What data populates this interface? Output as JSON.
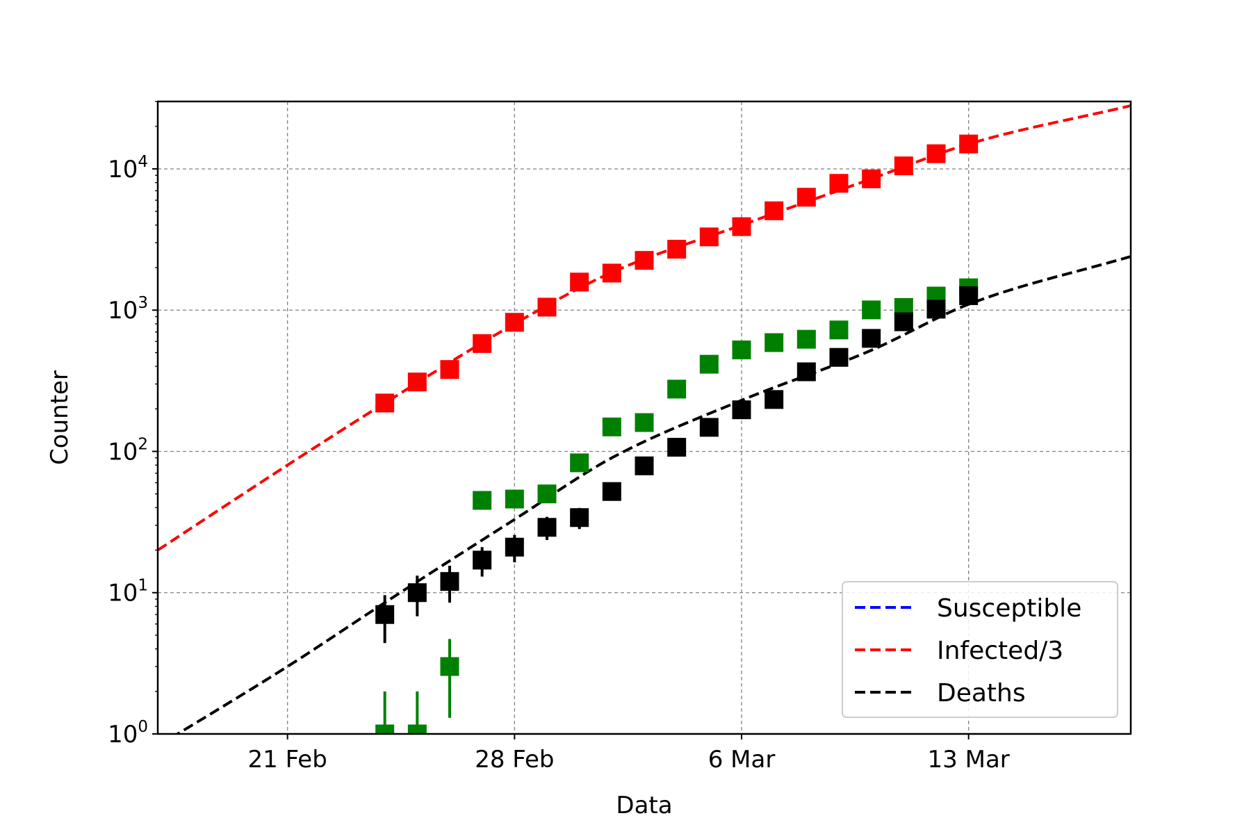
{
  "chart_data": {
    "type": "scatter",
    "xlabel": "Data",
    "ylabel": "Counter",
    "yscale": "log",
    "ylim": [
      1,
      30000
    ],
    "xlim": [
      "2020-02-17",
      "2020-03-18"
    ],
    "grid": true,
    "x_ticks": [
      {
        "date": "2020-02-21",
        "label": "21 Feb"
      },
      {
        "date": "2020-02-28",
        "label": "28 Feb"
      },
      {
        "date": "2020-03-06",
        "label": "6 Mar"
      },
      {
        "date": "2020-03-13",
        "label": "13 Mar"
      }
    ],
    "y_ticks": [
      {
        "value": 1,
        "base": "10",
        "exp": "0"
      },
      {
        "value": 10,
        "base": "10",
        "exp": "1"
      },
      {
        "value": 100,
        "base": "10",
        "exp": "2"
      },
      {
        "value": 1000,
        "base": "10",
        "exp": "3"
      },
      {
        "value": 10000,
        "base": "10",
        "exp": "4"
      }
    ],
    "legend": {
      "position": "lower-right",
      "entries": [
        {
          "label": "Susceptible",
          "color": "#0000ff"
        },
        {
          "label": "Infected/3",
          "color": "#ff0000"
        },
        {
          "label": "Deaths",
          "color": "#000000"
        }
      ]
    },
    "fit_curves": [
      {
        "color": "#ff0000",
        "points": [
          {
            "date": "2020-02-17",
            "y": 20
          },
          {
            "date": "2020-02-21",
            "y": 80
          },
          {
            "date": "2020-02-24",
            "y": 220
          },
          {
            "date": "2020-02-28",
            "y": 800
          },
          {
            "date": "2020-03-02",
            "y": 1850
          },
          {
            "date": "2020-03-06",
            "y": 4000
          },
          {
            "date": "2020-03-10",
            "y": 8500
          },
          {
            "date": "2020-03-13",
            "y": 15000
          },
          {
            "date": "2020-03-18",
            "y": 28000
          }
        ]
      },
      {
        "color": "#000000",
        "points": [
          {
            "date": "2020-02-17",
            "y": 0.82
          },
          {
            "date": "2020-02-21",
            "y": 3
          },
          {
            "date": "2020-02-24",
            "y": 8.5
          },
          {
            "date": "2020-02-28",
            "y": 33
          },
          {
            "date": "2020-03-02",
            "y": 90
          },
          {
            "date": "2020-03-06",
            "y": 230
          },
          {
            "date": "2020-03-10",
            "y": 520
          },
          {
            "date": "2020-03-13",
            "y": 1100
          },
          {
            "date": "2020-03-18",
            "y": 2400
          }
        ]
      }
    ],
    "series": [
      {
        "color": "#ff0000",
        "points": [
          {
            "date": "2020-02-24",
            "y": 220
          },
          {
            "date": "2020-02-25",
            "y": 310
          },
          {
            "date": "2020-02-26",
            "y": 380
          },
          {
            "date": "2020-02-27",
            "y": 580
          },
          {
            "date": "2020-02-28",
            "y": 820
          },
          {
            "date": "2020-02-29",
            "y": 1050
          },
          {
            "date": "2020-03-01",
            "y": 1580
          },
          {
            "date": "2020-03-02",
            "y": 1830
          },
          {
            "date": "2020-03-03",
            "y": 2250
          },
          {
            "date": "2020-03-04",
            "y": 2700
          },
          {
            "date": "2020-03-05",
            "y": 3300
          },
          {
            "date": "2020-03-06",
            "y": 3900
          },
          {
            "date": "2020-03-07",
            "y": 5050
          },
          {
            "date": "2020-03-08",
            "y": 6300
          },
          {
            "date": "2020-03-09",
            "y": 7900
          },
          {
            "date": "2020-03-10",
            "y": 8500
          },
          {
            "date": "2020-03-11",
            "y": 10500
          },
          {
            "date": "2020-03-12",
            "y": 12800
          },
          {
            "date": "2020-03-13",
            "y": 15000
          }
        ]
      },
      {
        "color": "#008000",
        "points": [
          {
            "date": "2020-02-24",
            "y": 1,
            "err": [
              1,
              2
            ]
          },
          {
            "date": "2020-02-25",
            "y": 1,
            "err": [
              1,
              2
            ]
          },
          {
            "date": "2020-02-26",
            "y": 3,
            "err": [
              1.3,
              4.7
            ]
          },
          {
            "date": "2020-02-27",
            "y": 45
          },
          {
            "date": "2020-02-28",
            "y": 46
          },
          {
            "date": "2020-02-29",
            "y": 50
          },
          {
            "date": "2020-03-01",
            "y": 83
          },
          {
            "date": "2020-03-02",
            "y": 149
          },
          {
            "date": "2020-03-03",
            "y": 160
          },
          {
            "date": "2020-03-04",
            "y": 276
          },
          {
            "date": "2020-03-05",
            "y": 414
          },
          {
            "date": "2020-03-06",
            "y": 523
          },
          {
            "date": "2020-03-07",
            "y": 589
          },
          {
            "date": "2020-03-08",
            "y": 622
          },
          {
            "date": "2020-03-09",
            "y": 724
          },
          {
            "date": "2020-03-10",
            "y": 1004
          },
          {
            "date": "2020-03-11",
            "y": 1045
          },
          {
            "date": "2020-03-12",
            "y": 1258
          },
          {
            "date": "2020-03-13",
            "y": 1439
          }
        ]
      },
      {
        "color": "#000000",
        "points": [
          {
            "date": "2020-02-24",
            "y": 7,
            "err": [
              4.4,
              9.6
            ]
          },
          {
            "date": "2020-02-25",
            "y": 10,
            "err": [
              6.8,
              13.2
            ]
          },
          {
            "date": "2020-02-26",
            "y": 12,
            "err": [
              8.5,
              15.5
            ]
          },
          {
            "date": "2020-02-27",
            "y": 17,
            "err": [
              13,
              21
            ]
          },
          {
            "date": "2020-02-28",
            "y": 21,
            "err": [
              16.4,
              25.6
            ]
          },
          {
            "date": "2020-02-29",
            "y": 29,
            "err": [
              23.6,
              34.4
            ]
          },
          {
            "date": "2020-03-01",
            "y": 34,
            "err": [
              28.2,
              39.8
            ]
          },
          {
            "date": "2020-03-02",
            "y": 52
          },
          {
            "date": "2020-03-03",
            "y": 79
          },
          {
            "date": "2020-03-04",
            "y": 107
          },
          {
            "date": "2020-03-05",
            "y": 148
          },
          {
            "date": "2020-03-06",
            "y": 197
          },
          {
            "date": "2020-03-07",
            "y": 233
          },
          {
            "date": "2020-03-08",
            "y": 366
          },
          {
            "date": "2020-03-09",
            "y": 463
          },
          {
            "date": "2020-03-10",
            "y": 631
          },
          {
            "date": "2020-03-11",
            "y": 827
          },
          {
            "date": "2020-03-12",
            "y": 1016
          },
          {
            "date": "2020-03-13",
            "y": 1266
          }
        ]
      }
    ]
  }
}
